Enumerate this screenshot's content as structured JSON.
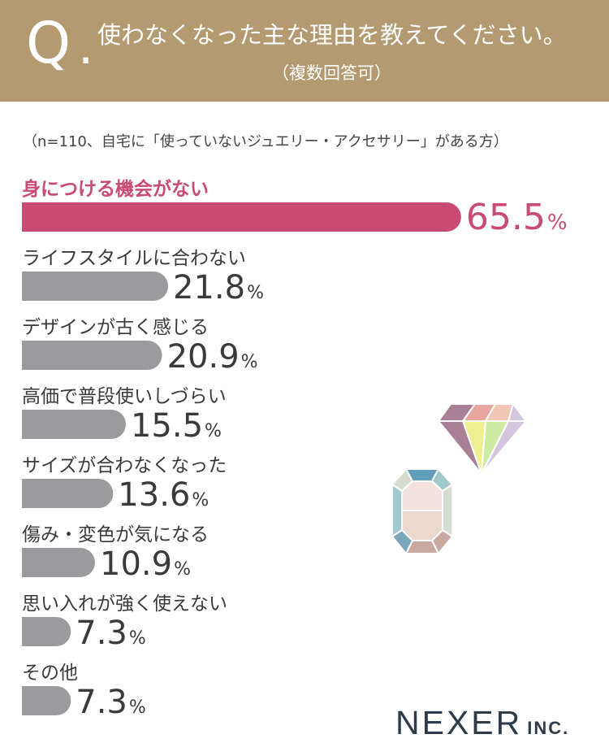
{
  "header": {
    "q_letter": "Q",
    "q_dot": ".",
    "question": "使わなくなった主な理由を教えてください。",
    "note": "（複数回答可）"
  },
  "sample_note": "（n=110、自宅に「使っていないジュエリー・アクセサリー」がある方）",
  "chart_data": {
    "type": "bar",
    "orientation": "horizontal",
    "unit": "%",
    "categories": [
      "身につける機会がない",
      "ライフスタイルに合わない",
      "デザインが古く感じる",
      "高価で普段使いしづらい",
      "サイズが合わなくなった",
      "傷み・変色が気になる",
      "思い入れが強く使えない",
      "その他"
    ],
    "values": [
      65.5,
      21.8,
      20.9,
      15.5,
      13.6,
      10.9,
      7.3,
      7.3
    ],
    "labels": [
      "65.5",
      "21.8",
      "20.9",
      "15.5",
      "13.6",
      "10.9",
      "7.3",
      "7.3"
    ],
    "highlight_index": 0,
    "colors": {
      "highlight": "#c94a72",
      "default": "#9a9a9f",
      "highlight_text": "#c94a72",
      "default_text": "#3a3a3a"
    }
  },
  "decor": {
    "diamond_colors": [
      "#a87f94",
      "#e9a6a0",
      "#f2c7b8",
      "#eef08f",
      "#cdeba1",
      "#d3c6de",
      "#e9ede0"
    ],
    "gem_colors": [
      "#5f9fb8",
      "#9fc7cc",
      "#d4ddd0",
      "#ead8cf",
      "#f4e3dd",
      "#c9aaa0",
      "#7aa7bb"
    ]
  },
  "logo": {
    "main": "NEXER",
    "sub": "INC."
  }
}
